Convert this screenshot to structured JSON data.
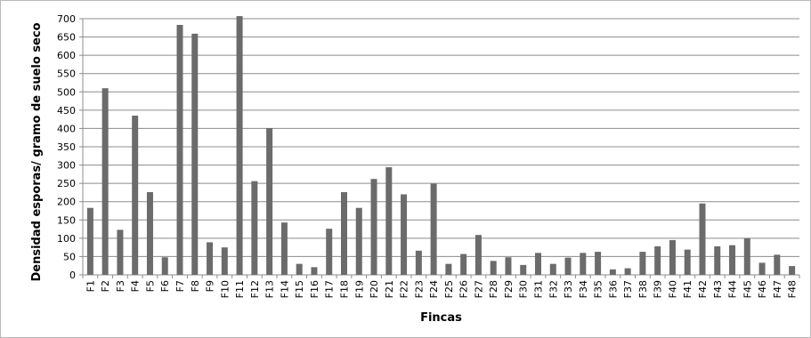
{
  "chart_data": {
    "type": "bar",
    "xlabel": "Fincas",
    "ylabel": "Densidad esporas/ gramo de suelo seco",
    "ylim": [
      0,
      700
    ],
    "yticks": [
      0,
      50,
      100,
      150,
      200,
      250,
      300,
      350,
      400,
      450,
      500,
      550,
      600,
      650,
      700
    ],
    "grid": true,
    "legend": "none",
    "bar_color": "#6b6b6b",
    "categories": [
      "F1",
      "F2",
      "F3",
      "F4",
      "F5",
      "F6",
      "F7",
      "F8",
      "F9",
      "F10",
      "F11",
      "F12",
      "F13",
      "F14",
      "F15",
      "F16",
      "F17",
      "F18",
      "F19",
      "F20",
      "F21",
      "F22",
      "F23",
      "F24",
      "F25",
      "F26",
      "F27",
      "F28",
      "F29",
      "F30",
      "F31",
      "F32",
      "F33",
      "F34",
      "F35",
      "F36",
      "F37",
      "F38",
      "F39",
      "F40",
      "F41",
      "F42",
      "F43",
      "F44",
      "F45",
      "F46",
      "F47",
      "F48"
    ],
    "values": [
      183,
      510,
      123,
      435,
      226,
      48,
      683,
      659,
      89,
      75,
      707,
      256,
      401,
      143,
      30,
      21,
      126,
      226,
      183,
      262,
      294,
      220,
      66,
      249,
      30,
      57,
      109,
      38,
      48,
      27,
      60,
      30,
      47,
      60,
      63,
      15,
      18,
      63,
      78,
      95,
      69,
      195,
      78,
      81,
      100,
      33,
      55,
      24
    ]
  }
}
